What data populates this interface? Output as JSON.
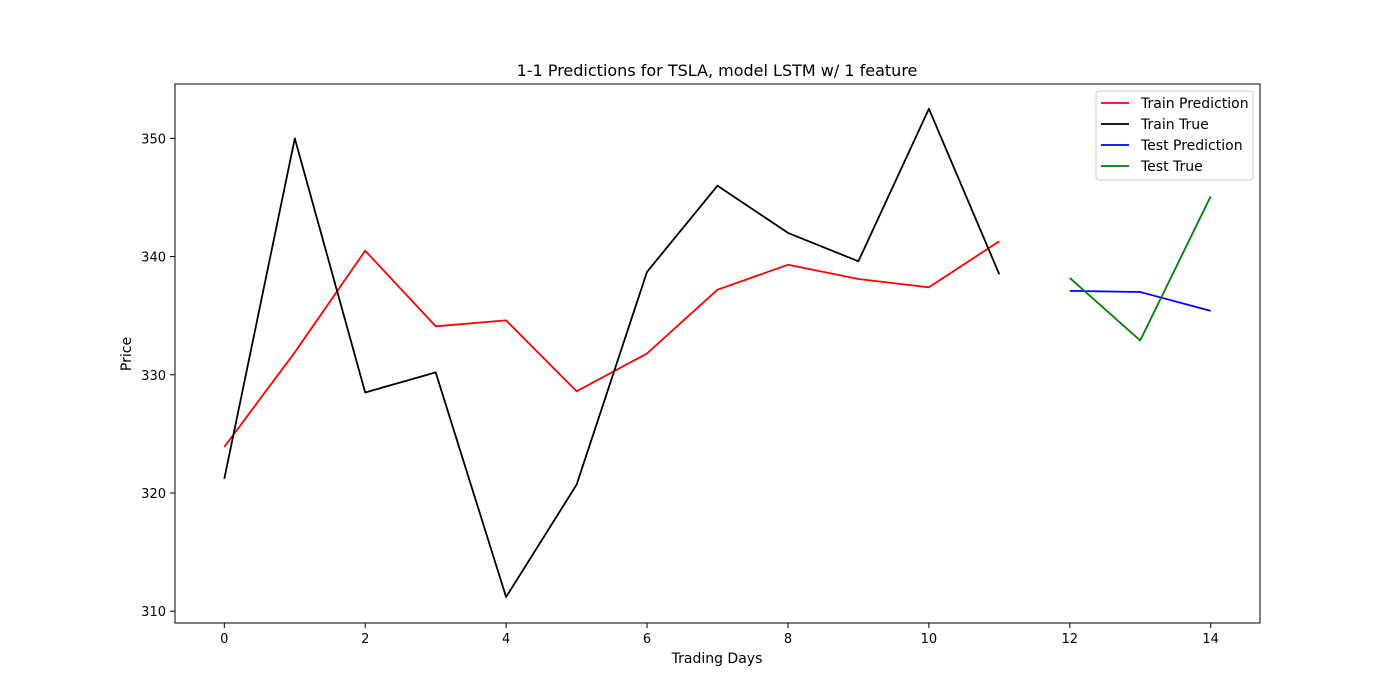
{
  "chart_data": {
    "type": "line",
    "title": "1-1 Predictions for TSLA, model LSTM w/ 1 feature",
    "xlabel": "Trading Days",
    "ylabel": "Price",
    "xlim": [
      -0.7,
      14.7
    ],
    "ylim": [
      309.0,
      354.6
    ],
    "xticks": [
      0,
      2,
      4,
      6,
      8,
      10,
      12,
      14
    ],
    "yticks": [
      310,
      320,
      330,
      340,
      350
    ],
    "grid": false,
    "legend_position": "top-right",
    "series": [
      {
        "name": "Train Prediction",
        "color": "#ff0000",
        "x": [
          0,
          1,
          2,
          3,
          4,
          5,
          6,
          7,
          8,
          9,
          10,
          11
        ],
        "y": [
          323.9,
          331.9,
          340.5,
          334.1,
          334.6,
          328.6,
          331.8,
          337.2,
          339.3,
          338.1,
          337.4,
          341.3
        ]
      },
      {
        "name": "Train True",
        "color": "#000000",
        "x": [
          0,
          1,
          2,
          3,
          4,
          5,
          6,
          7,
          8,
          9,
          10,
          11
        ],
        "y": [
          321.2,
          350.0,
          328.5,
          330.2,
          311.2,
          320.7,
          338.7,
          346.0,
          342.0,
          339.6,
          352.5,
          338.5
        ]
      },
      {
        "name": "Test Prediction",
        "color": "#0000ff",
        "x": [
          12,
          13,
          14
        ],
        "y": [
          337.1,
          337.0,
          335.4
        ]
      },
      {
        "name": "Test True",
        "color": "#008000",
        "x": [
          12,
          13,
          14
        ],
        "y": [
          338.2,
          332.9,
          345.1
        ]
      }
    ]
  }
}
